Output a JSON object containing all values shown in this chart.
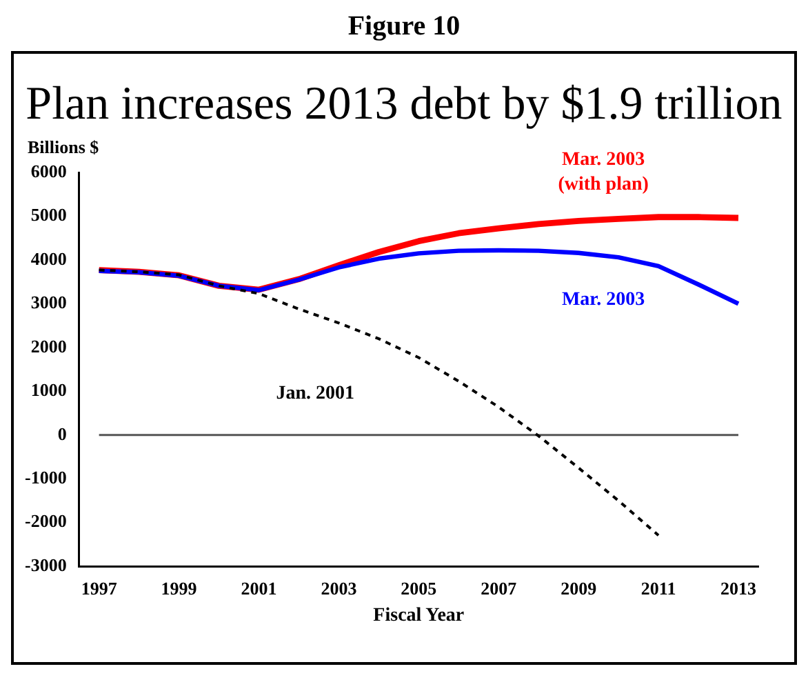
{
  "chart_data": {
    "type": "line",
    "subtitle": "Figure 10",
    "title": "Plan increases 2013 debt by $1.9 trillion",
    "ylabel": "Billions $",
    "xlabel": "Fiscal Year",
    "categories": [
      "1997",
      null,
      "1999",
      null,
      "2001",
      null,
      "2003",
      null,
      "2005",
      null,
      "2007",
      null,
      "2009",
      null,
      "2011",
      null,
      "2013"
    ],
    "series": [
      {
        "name": "Mar. 2003\n(with plan)",
        "color": "#ff0000",
        "line_style": "solid",
        "values": [
          3770,
          3730,
          3650,
          3410,
          3320,
          3560,
          3880,
          4180,
          4430,
          4610,
          4720,
          4820,
          4890,
          4940,
          4980,
          4980,
          4960
        ]
      },
      {
        "name": "Mar. 2003",
        "color": "#0000ff",
        "line_style": "solid",
        "values": [
          3750,
          3720,
          3640,
          3410,
          3310,
          3550,
          3830,
          4030,
          4150,
          4210,
          4220,
          4210,
          4160,
          4060,
          3860,
          3440,
          3000
        ]
      },
      {
        "name": "Jan. 2001",
        "color": "#000000",
        "line_style": "dotted",
        "values": [
          3770,
          3730,
          3660,
          3410,
          3230,
          2880,
          2560,
          2200,
          1770,
          1230,
          640,
          -20,
          -750,
          -1500,
          -2290,
          null,
          null
        ]
      }
    ],
    "ylim": [
      -3000,
      6000
    ],
    "yticks": [
      -3000,
      -2000,
      -1000,
      0,
      1000,
      2000,
      3000,
      4000,
      5000,
      6000
    ],
    "ref_lines": [
      {
        "axis": "y",
        "value": 0,
        "color": "#555555"
      }
    ],
    "grid": false,
    "legend": false,
    "marker": "none"
  }
}
